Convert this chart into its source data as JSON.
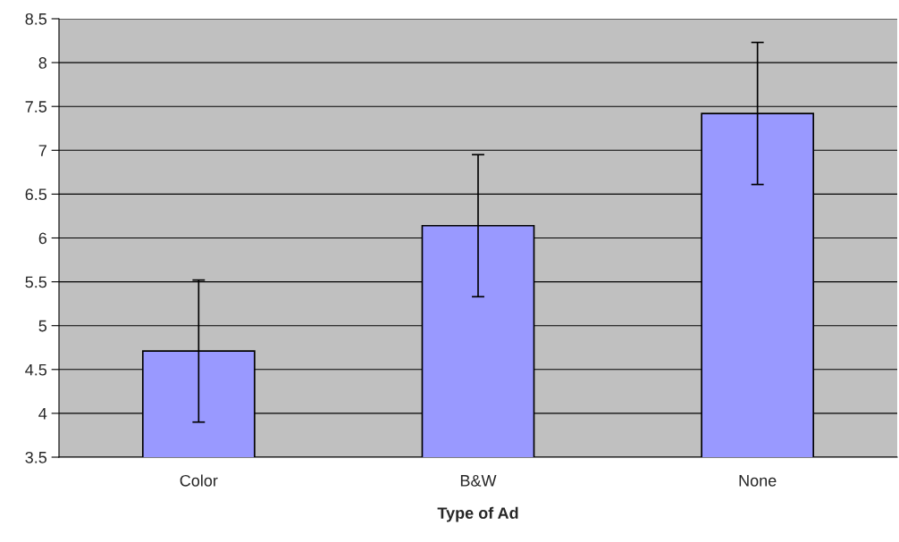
{
  "chart_data": {
    "type": "bar",
    "xlabel": "Type of Ad",
    "categories": [
      "Color",
      "B&W",
      "None"
    ],
    "values": [
      4.71,
      6.14,
      7.42
    ],
    "errors": [
      0.81,
      0.81,
      0.81
    ],
    "color": "#9999ff",
    "ylim": [
      3.5,
      8.5
    ],
    "yticks": [
      3.5,
      4,
      4.5,
      5,
      5.5,
      6,
      6.5,
      7,
      7.5,
      8,
      8.5
    ],
    "grid": "y"
  }
}
